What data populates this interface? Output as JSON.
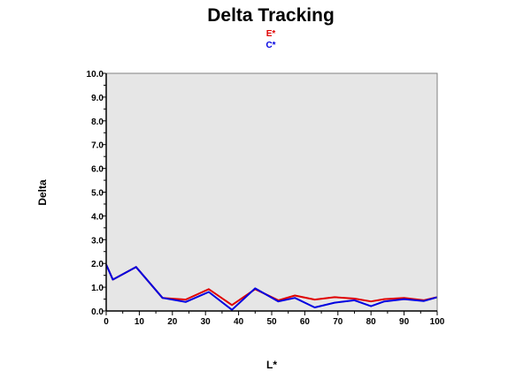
{
  "chart_data": {
    "type": "line",
    "title": "Delta Tracking",
    "xlabel": "L*",
    "ylabel": "Delta",
    "xlim": [
      0,
      100
    ],
    "ylim": [
      0,
      10
    ],
    "x_ticks": [
      "0",
      "10",
      "20",
      "30",
      "40",
      "50",
      "60",
      "70",
      "80",
      "90",
      "100"
    ],
    "y_ticks": [
      "0.0",
      "1.0",
      "2.0",
      "3.0",
      "4.0",
      "5.0",
      "6.0",
      "7.0",
      "8.0",
      "9.0",
      "10.0"
    ],
    "legend_placement": "top-center",
    "plot_background": "#e6e6e6",
    "series": [
      {
        "name": "E*",
        "color": "#e00000",
        "x": [
          0,
          2,
          9,
          17,
          24,
          31,
          38,
          45,
          52,
          57,
          63,
          69,
          75,
          80,
          84,
          90,
          96,
          100
        ],
        "y": [
          1.95,
          1.32,
          1.85,
          0.55,
          0.48,
          0.92,
          0.25,
          0.92,
          0.45,
          0.65,
          0.48,
          0.58,
          0.52,
          0.4,
          0.5,
          0.55,
          0.45,
          0.58
        ]
      },
      {
        "name": "C*",
        "color": "#0000e0",
        "x": [
          0,
          2,
          9,
          17,
          24,
          31,
          38,
          45,
          52,
          57,
          63,
          69,
          75,
          80,
          84,
          90,
          96,
          100
        ],
        "y": [
          1.95,
          1.32,
          1.85,
          0.55,
          0.38,
          0.8,
          0.05,
          0.95,
          0.4,
          0.55,
          0.15,
          0.35,
          0.45,
          0.2,
          0.4,
          0.5,
          0.42,
          0.58
        ]
      }
    ]
  }
}
